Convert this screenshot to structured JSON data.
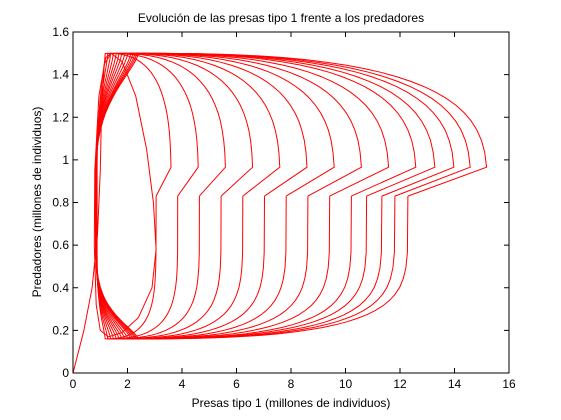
{
  "chart_data": {
    "type": "line",
    "title": "Evolución de las presas tipo 1 frente a los predadores",
    "xlabel": "Presas tipo 1 (millones de individuos)",
    "ylabel": "Predadores (millones de individuos)",
    "xlim": [
      0,
      16
    ],
    "ylim": [
      0,
      1.6
    ],
    "xticks": [
      0,
      2,
      4,
      6,
      8,
      10,
      12,
      14,
      16
    ],
    "yticks": [
      0,
      0.2,
      0.4,
      0.6,
      0.8,
      1,
      1.2,
      1.4,
      1.6
    ],
    "grid": false,
    "legend": "none",
    "line_color": "#ff0000",
    "series": [
      {
        "x": [
          0,
          0.4,
          0.7,
          0.9,
          1.0,
          1.05,
          1.15,
          1.4,
          1.8,
          2.3,
          2.7,
          2.95,
          3.05,
          2.9,
          2.4,
          1.8,
          1.3,
          1.0,
          0.85,
          0.78,
          0.8,
          0.95,
          1.2,
          1.4
        ],
        "y": [
          0,
          0.2,
          0.4,
          0.65,
          0.95,
          1.25,
          1.45,
          1.5,
          1.46,
          1.3,
          1.05,
          0.8,
          0.58,
          0.4,
          0.26,
          0.19,
          0.17,
          0.2,
          0.32,
          0.6,
          0.95,
          1.3,
          1.48,
          1.5
        ]
      },
      {
        "center": [
          1.55,
          0.87
        ],
        "rx": 0.62,
        "ry": 0.65,
        "skew": 0.9,
        "xmin": 0.85,
        "xmax": 3.6
      },
      {
        "center": [
          2.0,
          0.85
        ],
        "rx": 0.9,
        "ry": 0.66,
        "skew": 1.0,
        "xmin": 0.82,
        "xmax": 4.6
      },
      {
        "center": [
          2.5,
          0.83
        ],
        "rx": 1.2,
        "ry": 0.66,
        "skew": 1.1,
        "xmin": 0.8,
        "xmax": 5.6
      },
      {
        "center": [
          3.0,
          0.82
        ],
        "rx": 1.5,
        "ry": 0.67,
        "skew": 1.2,
        "xmin": 0.78,
        "xmax": 6.6
      },
      {
        "center": [
          3.5,
          0.81
        ],
        "rx": 1.8,
        "ry": 0.67,
        "skew": 1.3,
        "xmin": 0.76,
        "xmax": 7.6
      },
      {
        "center": [
          4.0,
          0.8
        ],
        "rx": 2.1,
        "ry": 0.67,
        "skew": 1.4,
        "xmin": 0.74,
        "xmax": 8.6
      },
      {
        "center": [
          4.5,
          0.8
        ],
        "rx": 2.4,
        "ry": 0.67,
        "skew": 1.5,
        "xmin": 0.72,
        "xmax": 9.6
      },
      {
        "center": [
          5.0,
          0.79
        ],
        "rx": 2.7,
        "ry": 0.67,
        "skew": 1.6,
        "xmin": 0.71,
        "xmax": 10.6
      },
      {
        "center": [
          5.5,
          0.79
        ],
        "rx": 3.0,
        "ry": 0.67,
        "skew": 1.7,
        "xmin": 0.7,
        "xmax": 11.6
      },
      {
        "center": [
          6.0,
          0.78
        ],
        "rx": 3.3,
        "ry": 0.67,
        "skew": 1.8,
        "xmin": 0.69,
        "xmax": 12.6
      },
      {
        "center": [
          6.5,
          0.78
        ],
        "rx": 3.6,
        "ry": 0.67,
        "skew": 1.9,
        "xmin": 0.68,
        "xmax": 13.3
      },
      {
        "center": [
          7.0,
          0.78
        ],
        "rx": 3.9,
        "ry": 0.67,
        "skew": 2.0,
        "xmin": 0.67,
        "xmax": 14.0
      },
      {
        "center": [
          7.5,
          0.78
        ],
        "rx": 4.2,
        "ry": 0.67,
        "skew": 2.1,
        "xmin": 0.66,
        "xmax": 14.6
      },
      {
        "center": [
          8.0,
          0.78
        ],
        "rx": 4.5,
        "ry": 0.67,
        "skew": 2.2,
        "xmin": 0.65,
        "xmax": 15.2
      }
    ]
  }
}
